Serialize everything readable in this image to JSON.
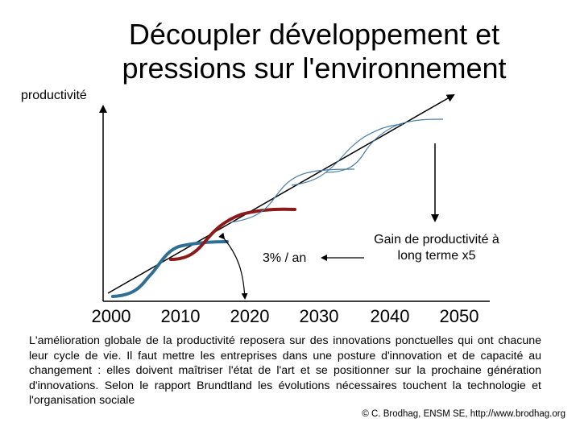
{
  "slide": {
    "title": "Découpler développement et pressions sur l'environnement",
    "y_axis_label": "productivité",
    "x_ticks": [
      "2000",
      "2010",
      "2020",
      "2030",
      "2040",
      "2050"
    ],
    "rate_label": "3% / an",
    "gain_label": "Gain de productivité à long terme x5",
    "body_text": "L'amélioration globale de la productivité reposera sur des innovations ponctuelles qui ont chacune leur cycle de vie. Il faut mettre les entreprises dans une posture d'innovation et de capacité au changement : elles doivent maîtriser l'état de l'art et se positionner sur la prochaine génération d'innovations. Selon le rapport Brundtland les évolutions nécessaires touchent la technologie et l'organisation sociale",
    "credit": "© C. Brodhag, ENSM SE, http://www.brodhag.org"
  },
  "colors": {
    "axis": "#000000",
    "trend_line": "#000000",
    "curve_blue": "#2f6f95",
    "curve_red": "#8b1a1a",
    "curve_thin": "#4a7fa6"
  }
}
